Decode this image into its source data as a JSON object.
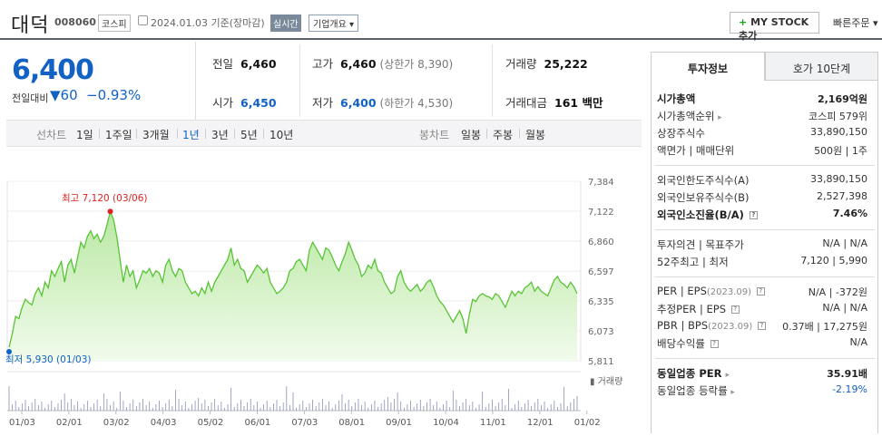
{
  "header": {
    "name": "대덕",
    "code": "008060",
    "market": "코스피",
    "date": "2024.01.03",
    "date_suffix": "기준(장마감)",
    "realtime": "실시간",
    "overview": "기업개요 ▾",
    "mystock_plus": "+",
    "mystock": "MY STOCK 추가",
    "quick_order": "빠른주문 ▾"
  },
  "price": {
    "current": "6,400",
    "change_label": "전일대비",
    "change": "▼60",
    "change_pct": "−0.93%"
  },
  "summary": {
    "prev_label": "전일",
    "prev": "6,460",
    "high_label": "고가",
    "high": "6,460",
    "upper_limit": "(상한가 8,390)",
    "volume_label": "거래량",
    "volume": "25,222",
    "open_label": "시가",
    "open": "6,450",
    "low_label": "저가",
    "low": "6,400",
    "lower_limit": "(하한가 4,530)",
    "amount_label": "거래대금",
    "amount": "161 백만"
  },
  "periods": {
    "line_label": "선차트",
    "items": [
      "1일",
      "1주일",
      "3개월",
      "1년",
      "3년",
      "5년",
      "10년"
    ],
    "active": "1년",
    "candle_label": "봉차트",
    "candle_items": [
      "일봉",
      "주봉",
      "월봉"
    ]
  },
  "chart_data": {
    "type": "area",
    "y_ticks": [
      "7,384",
      "7,122",
      "6,860",
      "6,597",
      "6,335",
      "6,073",
      "5,811"
    ],
    "x_ticks": [
      "01/03",
      "02/01",
      "03/02",
      "04/03",
      "05/02",
      "06/01",
      "07/03",
      "08/01",
      "09/01",
      "10/04",
      "11/01",
      "12/01",
      "01/02"
    ],
    "ylim": [
      5811,
      7384
    ],
    "high_label": "최고 7,120 (03/06)",
    "low_label": "최저 5,930 (01/03)",
    "volume_label": "거래량",
    "series": [
      {
        "values": [
          5930,
          6050,
          6200,
          6180,
          6280,
          6350,
          6320,
          6300,
          6400,
          6450,
          6380,
          6500,
          6450,
          6600,
          6550,
          6620,
          6680,
          6500,
          6650,
          6700,
          6580,
          6720,
          6850,
          6800,
          6900,
          6950,
          6880,
          6920,
          6850,
          6900,
          7000,
          7120,
          7050,
          6900,
          6700,
          6500,
          6650,
          6550,
          6600,
          6450,
          6520,
          6600,
          6580,
          6620,
          6550,
          6600,
          6580,
          6500,
          6650,
          6700,
          6600,
          6550,
          6620,
          6600,
          6500,
          6450,
          6400,
          6420,
          6380,
          6450,
          6400,
          6500,
          6420,
          6500,
          6550,
          6600,
          6650,
          6700,
          6800,
          6650,
          6700,
          6620,
          6600,
          6500,
          6550,
          6600,
          6650,
          6620,
          6580,
          6620,
          6500,
          6450,
          6400,
          6420,
          6450,
          6500,
          6600,
          6620,
          6680,
          6700,
          6650,
          6600,
          6780,
          6850,
          6800,
          6750,
          6700,
          6800,
          6780,
          6720,
          6650,
          6600,
          6680,
          6750,
          6850,
          6780,
          6700,
          6650,
          6550,
          6580,
          6650,
          6620,
          6700,
          6600,
          6580,
          6500,
          6450,
          6400,
          6420,
          6550,
          6600,
          6500,
          6450,
          6420,
          6450,
          6480,
          6420,
          6450,
          6500,
          6520,
          6460,
          6380,
          6330,
          6300,
          6250,
          6200,
          6150,
          6200,
          6250,
          6180,
          6050,
          6220,
          6350,
          6330,
          6380,
          6400,
          6380,
          6370,
          6350,
          6400,
          6380,
          6330,
          6280,
          6350,
          6420,
          6380,
          6420,
          6400,
          6450,
          6470,
          6500,
          6420,
          6460,
          6420,
          6400,
          6380,
          6450,
          6520,
          6550,
          6500,
          6480,
          6450,
          6500,
          6460,
          6400
        ]
      }
    ]
  },
  "tabs": {
    "invest": "투자정보",
    "ask": "호가 10단계"
  },
  "invest": {
    "mcap_label": "시가총액",
    "mcap": "2,169억원",
    "mcap_rank_label": "시가총액순위",
    "mcap_rank": "코스피 579위",
    "shares_label": "상장주식수",
    "shares": "33,890,150",
    "par_label": "액면가 | 매매단위",
    "par": "500원 | 1주",
    "foreign_limit_label": "외국인한도주식수(A)",
    "foreign_limit": "33,890,150",
    "foreign_hold_label": "외국인보유주식수(B)",
    "foreign_hold": "2,527,398",
    "foreign_ratio_label": "외국인소진율(B/A)",
    "foreign_ratio": "7.46%",
    "opinion_label": "투자의견 | 목표주가",
    "opinion": "N/A | N/A",
    "w52_label": "52주최고 | 최저",
    "w52": "7,120 | 5,990",
    "per_label": "PER | EPS",
    "per_date": "(2023.09)",
    "per": "N/A | -372원",
    "est_per_label": "추정PER | EPS",
    "est_per": "N/A | N/A",
    "pbr_label": "PBR | BPS",
    "pbr_date": "(2023.09)",
    "pbr": "0.37배 | 17,275원",
    "div_label": "배당수익률",
    "div": "N/A",
    "ind_per_label": "동일업종 PER",
    "ind_per": "35.91배",
    "ind_rate_label": "동일업종 등락률",
    "ind_rate": "-2.19%"
  },
  "colors": {
    "blue": "#1261c4",
    "green_line": "#58c435",
    "green_fill": "#d6f2c6",
    "red": "#e02222"
  }
}
